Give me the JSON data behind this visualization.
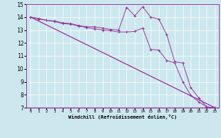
{
  "xlabel": "Windchill (Refroidissement éolien,°C)",
  "bg_color": "#cce8ee",
  "line_color": "#993399",
  "xlim": [
    -0.5,
    23.5
  ],
  "ylim": [
    7,
    15
  ],
  "xtick_labels": [
    "0",
    "1",
    "2",
    "3",
    "4",
    "5",
    "6",
    "7",
    "8",
    "9",
    "10",
    "11",
    "12",
    "13",
    "14",
    "15",
    "16",
    "17",
    "18",
    "19",
    "20",
    "21",
    "22",
    "23"
  ],
  "xtick_vals": [
    0,
    1,
    2,
    3,
    4,
    5,
    6,
    7,
    8,
    9,
    10,
    11,
    12,
    13,
    14,
    15,
    16,
    17,
    18,
    19,
    20,
    21,
    22,
    23
  ],
  "yticks": [
    7,
    8,
    9,
    10,
    11,
    12,
    13,
    14,
    15
  ],
  "series": [
    {
      "x": [
        0,
        1,
        2,
        3,
        4,
        5,
        6,
        7,
        8,
        9,
        10,
        11,
        12,
        13,
        14,
        15,
        16,
        17,
        18,
        19,
        20,
        21,
        22,
        23
      ],
      "y": [
        14.0,
        13.9,
        13.75,
        13.7,
        13.55,
        13.5,
        13.35,
        13.25,
        13.25,
        13.15,
        13.05,
        13.0,
        14.75,
        14.1,
        14.8,
        14.0,
        13.85,
        12.65,
        10.55,
        10.45,
        8.55,
        7.75,
        7.05,
        7.0
      ],
      "marker": true
    },
    {
      "x": [
        0,
        1,
        2,
        3,
        4,
        5,
        6,
        7,
        8,
        9,
        10,
        11,
        12,
        13,
        14,
        15,
        16,
        17,
        18,
        19,
        20,
        21,
        22,
        23
      ],
      "y": [
        14.0,
        13.85,
        13.75,
        13.65,
        13.5,
        13.45,
        13.3,
        13.2,
        13.1,
        13.0,
        12.95,
        12.85,
        12.85,
        12.9,
        13.15,
        11.5,
        11.45,
        10.65,
        10.45,
        9.0,
        7.95,
        7.45,
        7.05,
        7.0
      ],
      "marker": true
    },
    {
      "x": [
        0,
        23
      ],
      "y": [
        14.0,
        7.0
      ],
      "marker": false
    },
    {
      "x": [
        0,
        23
      ],
      "y": [
        14.0,
        7.0
      ],
      "marker": false
    }
  ]
}
